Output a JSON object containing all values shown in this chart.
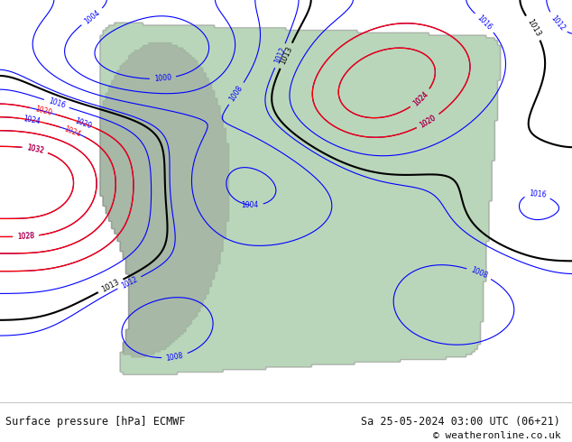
{
  "title_left": "Surface pressure [hPa] ECMWF",
  "title_right": "Sa 25-05-2024 03:00 UTC (06+21)",
  "copyright": "© weatheronline.co.uk",
  "bg_color": "#e8f4e8",
  "land_color": "#c8dfc8",
  "ocean_color": "#d0e8f0",
  "text_color": "#111111",
  "bottom_bg": "#ffffff",
  "figsize": [
    6.34,
    4.9
  ],
  "dpi": 100
}
